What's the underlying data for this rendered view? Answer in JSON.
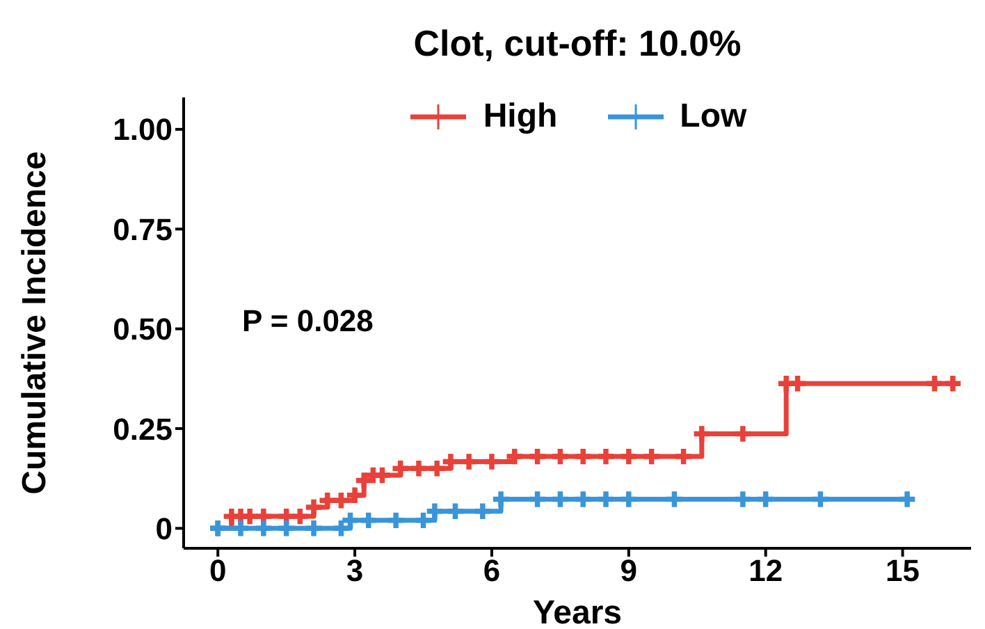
{
  "chart_data": {
    "type": "step",
    "title": "Clot, cut-off: 10.0%",
    "xlabel": "Years",
    "ylabel": "Cumulative Incidence",
    "annotations": [
      "P = 0.028"
    ],
    "series": [
      {
        "name": "High",
        "color": "#e8413a",
        "x": [
          0,
          0.3,
          0.5,
          0.7,
          1.0,
          1.5,
          1.8,
          2.1,
          2.4,
          2.7,
          3.0,
          3.2,
          3.4,
          3.6,
          4.0,
          4.4,
          4.8,
          5.1,
          5.5,
          6.0,
          6.5,
          7.0,
          7.5,
          8.0,
          8.5,
          9.0,
          9.5,
          10.2,
          10.6,
          11.5,
          12.45,
          12.7,
          15.7,
          16.1
        ],
        "values": [
          0,
          0.03,
          0.03,
          0.03,
          0.03,
          0.03,
          0.03,
          0.053,
          0.07,
          0.07,
          0.083,
          0.12,
          0.133,
          0.133,
          0.15,
          0.15,
          0.15,
          0.167,
          0.167,
          0.167,
          0.18,
          0.18,
          0.18,
          0.18,
          0.18,
          0.18,
          0.18,
          0.18,
          0.237,
          0.237,
          0.363,
          0.363,
          0.363,
          0.363
        ]
      },
      {
        "name": "Low",
        "color": "#3a95d8",
        "x": [
          0,
          0.5,
          1.0,
          1.5,
          2.1,
          2.7,
          2.9,
          3.3,
          3.9,
          4.5,
          4.75,
          5.2,
          5.8,
          6.2,
          7.0,
          7.5,
          8.0,
          8.5,
          9.0,
          10.0,
          11.5,
          12.0,
          13.2,
          15.1
        ],
        "values": [
          0,
          0,
          0,
          0,
          0,
          0,
          0.02,
          0.02,
          0.02,
          0.02,
          0.043,
          0.043,
          0.043,
          0.073,
          0.073,
          0.073,
          0.073,
          0.073,
          0.073,
          0.073,
          0.073,
          0.073,
          0.073,
          0.073
        ]
      }
    ],
    "xlim": [
      -0.75,
      16.5
    ],
    "xticks": [
      0,
      3,
      6,
      9,
      12,
      15
    ],
    "ylim": [
      -0.05,
      1.08
    ],
    "yticks": [
      {
        "value": 0,
        "label": "0"
      },
      {
        "value": 0.25,
        "label": "0.25"
      },
      {
        "value": 0.5,
        "label": "0.50"
      },
      {
        "value": 0.75,
        "label": "0.75"
      },
      {
        "value": 1,
        "label": "1.00"
      }
    ],
    "grid": false,
    "legend": "top",
    "marker": "cross",
    "line_style": "solid"
  }
}
